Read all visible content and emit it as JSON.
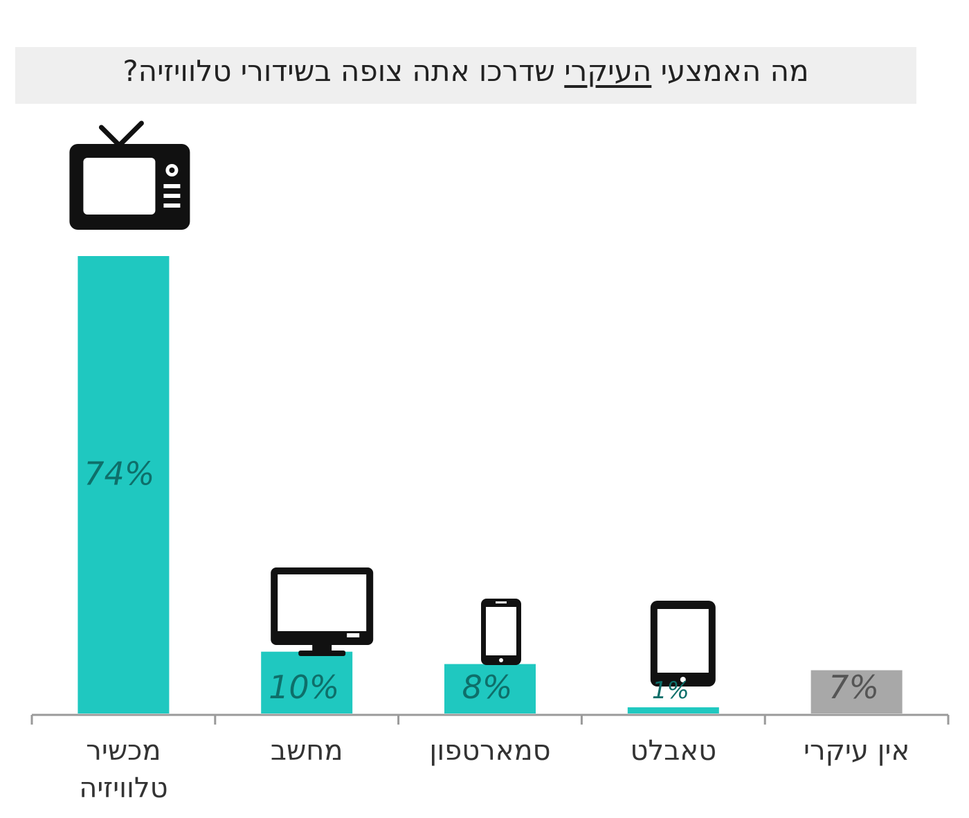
{
  "title": {
    "before": "מה האמצעי ",
    "emphasis": "העיקרי",
    "after": " שדרכו אתה צופה בשידורי טלוויזיה?"
  },
  "colors": {
    "primary": "#1fc8c0",
    "neutral": "#a8a8a8",
    "value_text": "#0e6f6a",
    "axis": "#9a9a9a"
  },
  "chart_data": {
    "type": "bar",
    "title": "מה האמצעי העיקרי שדרכו אתה צופה בשידורי טלוויזיה?",
    "categories": [
      [
        "מכשיר",
        "טלוויזיה"
      ],
      [
        "מחשב"
      ],
      [
        "סמארטפון"
      ],
      [
        "טאבלט"
      ],
      [
        "אין עיקרי"
      ]
    ],
    "values": [
      74,
      10,
      8,
      1,
      7
    ],
    "value_labels": [
      "74%",
      "10%",
      "8%",
      "1%",
      "7%"
    ],
    "bar_colors": [
      "#1fc8c0",
      "#1fc8c0",
      "#1fc8c0",
      "#1fc8c0",
      "#a8a8a8"
    ],
    "icons": [
      "tv-icon",
      "computer-monitor-icon",
      "smartphone-icon",
      "tablet-icon",
      ""
    ],
    "ylim": [
      0,
      74
    ],
    "grid": false,
    "legend": "none"
  }
}
